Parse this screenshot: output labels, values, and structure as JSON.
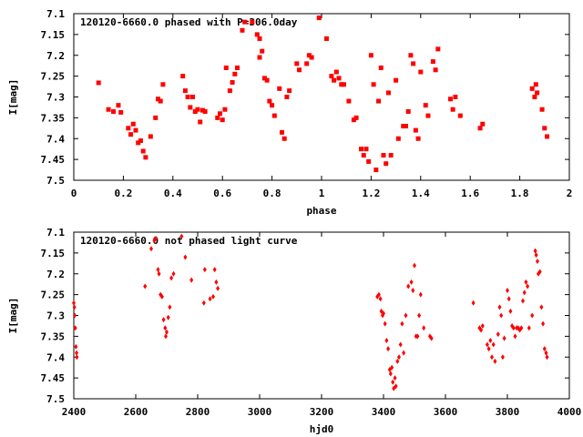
{
  "chart_data": [
    {
      "type": "scatter",
      "title": "120120-6660.0 phased with P=306.0day",
      "xlabel": "phase",
      "ylabel": "I[mag]",
      "xlim": [
        0,
        2
      ],
      "ylim": [
        7.1,
        7.5
      ],
      "y_inverted": true,
      "xticks": [
        "0",
        "0.2",
        "0.4",
        "0.6",
        "0.8",
        "1",
        "1.2",
        "1.4",
        "1.6",
        "1.8",
        "2"
      ],
      "yticks": [
        "7.1",
        "7.15",
        "7.2",
        "7.25",
        "7.3",
        "7.35",
        "7.4",
        "7.45",
        "7.5"
      ],
      "marker_color": "#ff0000",
      "grid": false,
      "series": [
        {
          "points": [
            [
              0.1,
              7.266
            ],
            [
              0.14,
              7.33
            ],
            [
              0.16,
              7.335
            ],
            [
              0.18,
              7.32
            ],
            [
              0.19,
              7.337
            ],
            [
              0.22,
              7.375
            ],
            [
              0.23,
              7.39
            ],
            [
              0.24,
              7.365
            ],
            [
              0.25,
              7.38
            ],
            [
              0.26,
              7.41
            ],
            [
              0.27,
              7.405
            ],
            [
              0.28,
              7.43
            ],
            [
              0.29,
              7.445
            ],
            [
              0.31,
              7.395
            ],
            [
              0.33,
              7.35
            ],
            [
              0.34,
              7.305
            ],
            [
              0.35,
              7.31
            ],
            [
              0.36,
              7.27
            ],
            [
              0.44,
              7.25
            ],
            [
              0.45,
              7.285
            ],
            [
              0.46,
              7.3
            ],
            [
              0.47,
              7.325
            ],
            [
              0.48,
              7.3
            ],
            [
              0.49,
              7.335
            ],
            [
              0.5,
              7.33
            ],
            [
              0.51,
              7.36
            ],
            [
              0.52,
              7.332
            ],
            [
              0.53,
              7.335
            ],
            [
              0.58,
              7.35
            ],
            [
              0.59,
              7.34
            ],
            [
              0.6,
              7.355
            ],
            [
              0.61,
              7.33
            ],
            [
              0.615,
              7.23
            ],
            [
              0.63,
              7.285
            ],
            [
              0.64,
              7.265
            ],
            [
              0.65,
              7.245
            ],
            [
              0.66,
              7.23
            ],
            [
              0.68,
              7.14
            ],
            [
              0.69,
              7.12
            ],
            [
              0.72,
              7.12
            ],
            [
              0.74,
              7.15
            ],
            [
              0.75,
              7.16
            ],
            [
              0.75,
              7.205
            ],
            [
              0.76,
              7.19
            ],
            [
              0.77,
              7.255
            ],
            [
              0.78,
              7.26
            ],
            [
              0.79,
              7.31
            ],
            [
              0.8,
              7.32
            ],
            [
              0.81,
              7.345
            ],
            [
              0.83,
              7.28
            ],
            [
              0.84,
              7.385
            ],
            [
              0.85,
              7.4
            ],
            [
              0.86,
              7.3
            ],
            [
              0.87,
              7.285
            ],
            [
              0.9,
              7.22
            ],
            [
              0.91,
              7.235
            ],
            [
              0.94,
              7.22
            ],
            [
              0.95,
              7.2
            ],
            [
              0.96,
              7.205
            ],
            [
              0.99,
              7.11
            ],
            [
              1.02,
              7.16
            ],
            [
              1.04,
              7.25
            ],
            [
              1.05,
              7.26
            ],
            [
              1.06,
              7.24
            ],
            [
              1.07,
              7.255
            ],
            [
              1.08,
              7.27
            ],
            [
              1.09,
              7.27
            ],
            [
              1.11,
              7.31
            ],
            [
              1.13,
              7.355
            ],
            [
              1.14,
              7.35
            ],
            [
              1.16,
              7.425
            ],
            [
              1.17,
              7.44
            ],
            [
              1.18,
              7.425
            ],
            [
              1.19,
              7.455
            ],
            [
              1.2,
              7.2
            ],
            [
              1.21,
              7.27
            ],
            [
              1.22,
              7.475
            ],
            [
              1.23,
              7.31
            ],
            [
              1.24,
              7.23
            ],
            [
              1.25,
              7.44
            ],
            [
              1.26,
              7.46
            ],
            [
              1.27,
              7.29
            ],
            [
              1.28,
              7.44
            ],
            [
              1.3,
              7.26
            ],
            [
              1.31,
              7.4
            ],
            [
              1.33,
              7.37
            ],
            [
              1.34,
              7.37
            ],
            [
              1.35,
              7.335
            ],
            [
              1.36,
              7.2
            ],
            [
              1.37,
              7.22
            ],
            [
              1.38,
              7.38
            ],
            [
              1.39,
              7.4
            ],
            [
              1.4,
              7.24
            ],
            [
              1.42,
              7.32
            ],
            [
              1.43,
              7.345
            ],
            [
              1.45,
              7.215
            ],
            [
              1.46,
              7.235
            ],
            [
              1.47,
              7.185
            ],
            [
              1.52,
              7.305
            ],
            [
              1.53,
              7.33
            ],
            [
              1.54,
              7.3
            ],
            [
              1.56,
              7.345
            ],
            [
              1.64,
              7.375
            ],
            [
              1.65,
              7.365
            ],
            [
              1.85,
              7.28
            ],
            [
              1.86,
              7.3
            ],
            [
              1.865,
              7.27
            ],
            [
              1.87,
              7.29
            ],
            [
              1.89,
              7.33
            ],
            [
              1.9,
              7.375
            ],
            [
              1.91,
              7.395
            ]
          ]
        }
      ]
    },
    {
      "type": "scatter",
      "title": "120120-6660.0 not phased light curve",
      "xlabel": "hjd0",
      "ylabel": "I[mag]",
      "xlim": [
        2400,
        4000
      ],
      "ylim": [
        7.1,
        7.5
      ],
      "y_inverted": true,
      "xticks": [
        "2400",
        "2600",
        "2800",
        "3000",
        "3200",
        "3400",
        "3600",
        "3800",
        "4000"
      ],
      "yticks": [
        "7.1",
        "7.15",
        "7.2",
        "7.25",
        "7.3",
        "7.35",
        "7.4",
        "7.45",
        "7.5"
      ],
      "marker_color": "#ff0000",
      "grid": false,
      "series": [
        {
          "points": [
            [
              2400,
              7.27
            ],
            [
              2402,
              7.28
            ],
            [
              2403,
              7.3
            ],
            [
              2405,
              7.33
            ],
            [
              2407,
              7.375
            ],
            [
              2409,
              7.39
            ],
            [
              2410,
              7.4
            ],
            [
              2630,
              7.23
            ],
            [
              2650,
              7.14
            ],
            [
              2660,
              7.12
            ],
            [
              2665,
              7.115
            ],
            [
              2672,
              7.19
            ],
            [
              2675,
              7.2
            ],
            [
              2680,
              7.25
            ],
            [
              2685,
              7.255
            ],
            [
              2690,
              7.31
            ],
            [
              2695,
              7.33
            ],
            [
              2697,
              7.35
            ],
            [
              2700,
              7.34
            ],
            [
              2705,
              7.305
            ],
            [
              2710,
              7.28
            ],
            [
              2715,
              7.21
            ],
            [
              2722,
              7.2
            ],
            [
              2748,
              7.11
            ],
            [
              2760,
              7.16
            ],
            [
              2780,
              7.215
            ],
            [
              2820,
              7.27
            ],
            [
              2823,
              7.19
            ],
            [
              2840,
              7.26
            ],
            [
              2850,
              7.255
            ],
            [
              2855,
              7.19
            ],
            [
              2860,
              7.22
            ],
            [
              2865,
              7.235
            ],
            [
              3380,
              7.255
            ],
            [
              3385,
              7.25
            ],
            [
              3390,
              7.26
            ],
            [
              3393,
              7.29
            ],
            [
              3397,
              7.3
            ],
            [
              3400,
              7.295
            ],
            [
              3405,
              7.32
            ],
            [
              3410,
              7.36
            ],
            [
              3415,
              7.38
            ],
            [
              3420,
              7.43
            ],
            [
              3423,
              7.44
            ],
            [
              3427,
              7.425
            ],
            [
              3430,
              7.46
            ],
            [
              3433,
              7.475
            ],
            [
              3437,
              7.45
            ],
            [
              3440,
              7.47
            ],
            [
              3445,
              7.41
            ],
            [
              3450,
              7.4
            ],
            [
              3455,
              7.37
            ],
            [
              3460,
              7.32
            ],
            [
              3465,
              7.39
            ],
            [
              3472,
              7.3
            ],
            [
              3480,
              7.23
            ],
            [
              3490,
              7.22
            ],
            [
              3495,
              7.24
            ],
            [
              3500,
              7.18
            ],
            [
              3505,
              7.35
            ],
            [
              3510,
              7.35
            ],
            [
              3515,
              7.3
            ],
            [
              3520,
              7.25
            ],
            [
              3530,
              7.33
            ],
            [
              3550,
              7.35
            ],
            [
              3555,
              7.355
            ],
            [
              3690,
              7.27
            ],
            [
              3710,
              7.33
            ],
            [
              3715,
              7.335
            ],
            [
              3720,
              7.325
            ],
            [
              3735,
              7.37
            ],
            [
              3740,
              7.38
            ],
            [
              3745,
              7.36
            ],
            [
              3750,
              7.4
            ],
            [
              3755,
              7.37
            ],
            [
              3760,
              7.41
            ],
            [
              3770,
              7.345
            ],
            [
              3775,
              7.28
            ],
            [
              3780,
              7.3
            ],
            [
              3785,
              7.4
            ],
            [
              3790,
              7.355
            ],
            [
              3800,
              7.24
            ],
            [
              3805,
              7.26
            ],
            [
              3810,
              7.29
            ],
            [
              3815,
              7.325
            ],
            [
              3820,
              7.33
            ],
            [
              3825,
              7.35
            ],
            [
              3830,
              7.33
            ],
            [
              3835,
              7.33
            ],
            [
              3840,
              7.335
            ],
            [
              3845,
              7.33
            ],
            [
              3850,
              7.265
            ],
            [
              3855,
              7.245
            ],
            [
              3860,
              7.22
            ],
            [
              3865,
              7.23
            ],
            [
              3870,
              7.33
            ],
            [
              3880,
              7.3
            ],
            [
              3890,
              7.145
            ],
            [
              3893,
              7.155
            ],
            [
              3897,
              7.17
            ],
            [
              3900,
              7.2
            ],
            [
              3905,
              7.195
            ],
            [
              3910,
              7.28
            ],
            [
              3915,
              7.32
            ],
            [
              3920,
              7.38
            ],
            [
              3925,
              7.39
            ],
            [
              3928,
              7.4
            ]
          ]
        }
      ]
    }
  ]
}
